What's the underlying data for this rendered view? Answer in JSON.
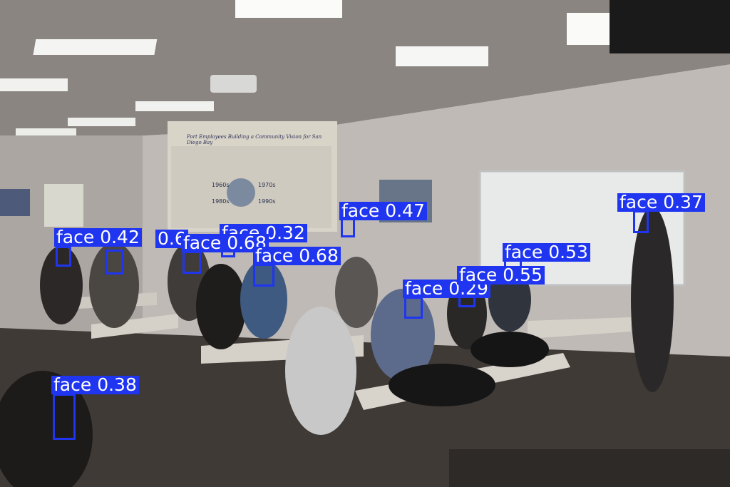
{
  "image": {
    "description_colors": {
      "box": "#1f35f0",
      "label_text": "#ffffff"
    }
  },
  "detections": [
    {
      "text": "face 0.47"
    },
    {
      "text": "face 0.37"
    },
    {
      "text": "face 0.32"
    },
    {
      "text": "face 0.42"
    },
    {
      "text": "0.6"
    },
    {
      "text": "face 0.68"
    },
    {
      "text": "face 0.68"
    },
    {
      "text": "face 0.53"
    },
    {
      "text": "face 0.55"
    },
    {
      "text": "face 0.29"
    },
    {
      "text": "face 0.38"
    }
  ],
  "poster": {
    "headline": "Port Employees Building a Community Vision for San Diego Bay",
    "years": [
      "1960s",
      "1970s",
      "1980s",
      "1990s"
    ]
  }
}
